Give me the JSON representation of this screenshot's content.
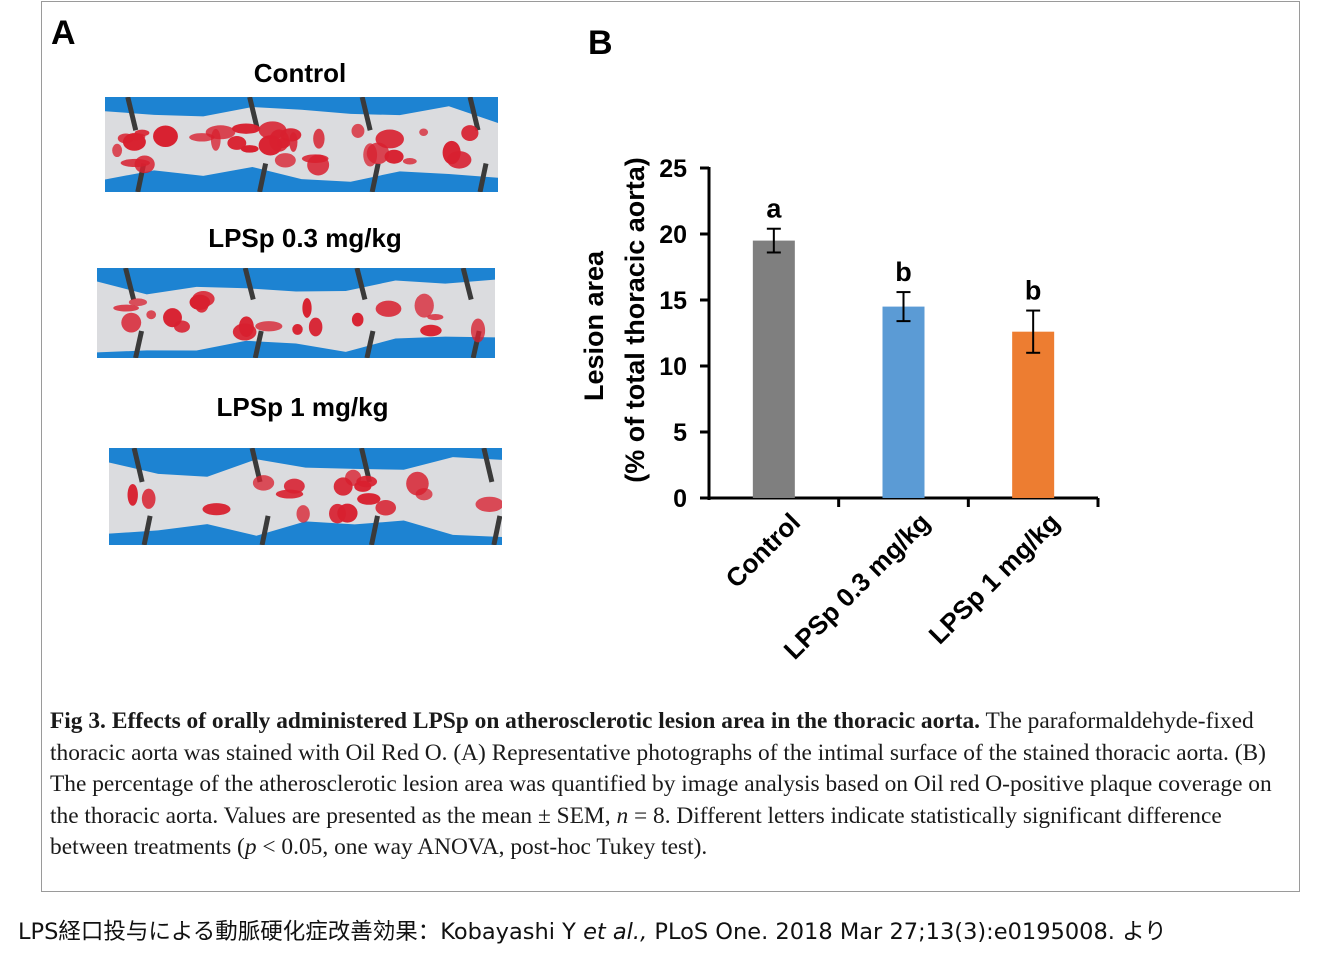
{
  "panel_a": {
    "letter": "A",
    "photos": [
      {
        "title": "Control"
      },
      {
        "title": "LPSp 0.3 mg/kg"
      },
      {
        "title": "LPSp 1 mg/kg"
      }
    ]
  },
  "panel_b": {
    "letter": "B"
  },
  "colors": {
    "photo_background": "#1d83d2",
    "tissue": "#e9e3e0",
    "plaque": "#d8202f",
    "bar_control": "#7f7f7f",
    "bar_lpsp_03": "#5b9bd5",
    "bar_lpsp_1": "#ed7d31"
  },
  "chart_data": {
    "type": "bar",
    "categories": [
      "Control",
      "LPSp 0.3 mg/kg",
      "LPSp 1 mg/kg"
    ],
    "values": [
      19.5,
      14.5,
      12.6
    ],
    "errors": [
      0.9,
      1.1,
      1.6
    ],
    "significance_letters": [
      "a",
      "b",
      "b"
    ],
    "colors": [
      "#7f7f7f",
      "#5b9bd5",
      "#ed7d31"
    ],
    "ylabel_line1": "Lesion area",
    "ylabel_line2": "(% of total thoracic aorta)",
    "yticks": [
      0,
      5,
      10,
      15,
      20,
      25
    ],
    "ylim": [
      0,
      25
    ],
    "grid": false,
    "legend": "none"
  },
  "caption": {
    "number": "Fig 3.",
    "heading": "Effects of orally administered LPSp on atherosclerotic lesion area in the thoracic aorta.",
    "text_1": " The paraformaldehyde-fixed thoracic aorta was stained with Oil Red O. (A) Representative photographs of the intimal surface of the stained thoracic aorta. (B) The percentage of the atherosclerotic lesion area was quantified by image analysis based on Oil red O-positive plaque coverage on the thoracic aorta. Values are presented as the mean ± SEM, ",
    "n_symbol": "n",
    "text_2": " = 8. Different letters indicate statistically significant difference between treatments (",
    "p_symbol": "p",
    "text_3": " < 0.05, one way ANOVA, post-hoc Tukey test)."
  },
  "citation": {
    "prefix": "LPS経口投与による動脈硬化症改善効果：Kobayashi Y ",
    "etal": "et al.,",
    "suffix": " PLoS One. 2018 Mar 27;13(3):e0195008.   より"
  }
}
